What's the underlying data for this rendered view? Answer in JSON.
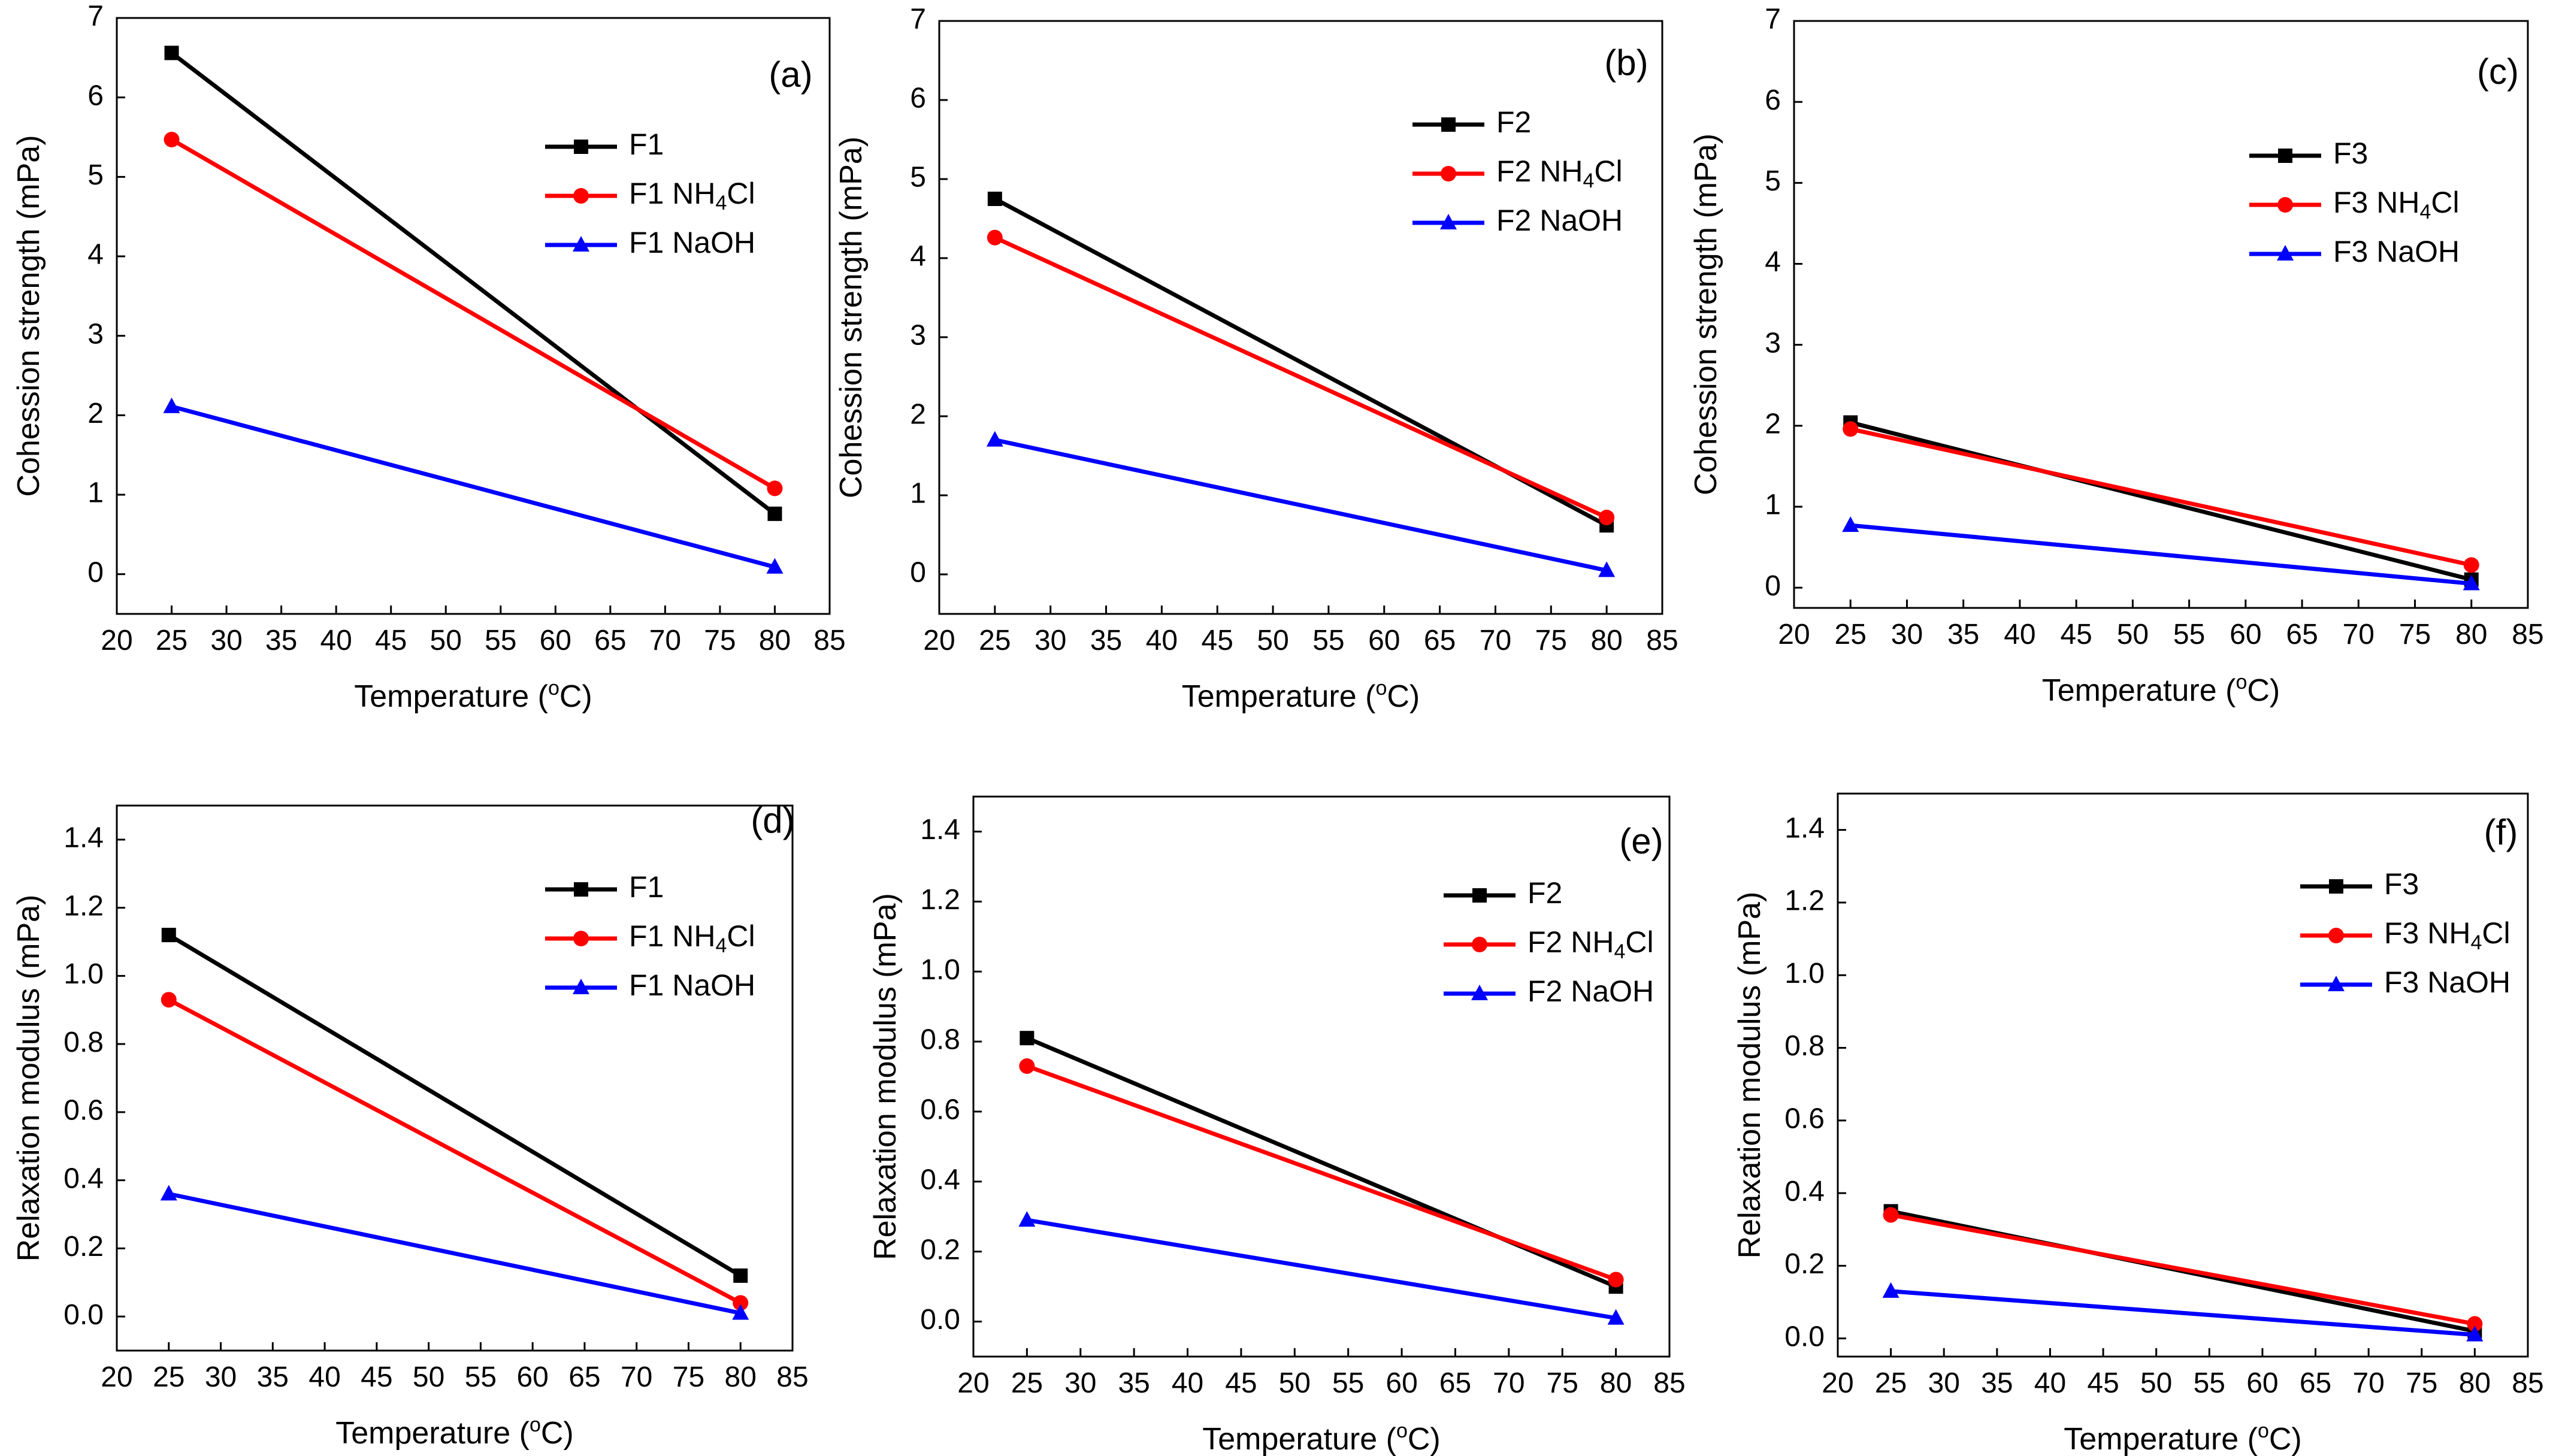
{
  "colors": {
    "black": "#000000",
    "red": "#ff0000",
    "blue": "#0000ff"
  },
  "chart_data": [
    {
      "type": "line",
      "panel_label": "(a)",
      "xlabel": "Temperature (",
      "xlabel_sup": "o",
      "xlabel_unit": "C)",
      "ylabel": "Cohession strength (mPa)",
      "xlim": [
        20,
        85
      ],
      "ylim": [
        -0.5,
        7
      ],
      "xticks": [
        "20",
        "25",
        "30",
        "35",
        "40",
        "45",
        "50",
        "55",
        "60",
        "65",
        "70",
        "75",
        "80",
        "85"
      ],
      "yticks": [
        "0",
        "1",
        "2",
        "3",
        "4",
        "5",
        "6",
        "7"
      ],
      "legend_position": "top-right",
      "series": [
        {
          "name": "F1",
          "sub": "",
          "suffix": "",
          "color": "#000000",
          "marker": "square",
          "x": [
            25,
            80
          ],
          "y": [
            6.56,
            0.76
          ]
        },
        {
          "name": "F1 NH",
          "sub": "4",
          "suffix": "Cl",
          "color": "#ff0000",
          "marker": "circle",
          "x": [
            25,
            80
          ],
          "y": [
            5.47,
            1.08
          ]
        },
        {
          "name": "F1 NaOH",
          "sub": "",
          "suffix": "",
          "color": "#0000ff",
          "marker": "triangle",
          "x": [
            25,
            80
          ],
          "y": [
            2.11,
            0.09
          ]
        }
      ]
    },
    {
      "type": "line",
      "panel_label": "(b)",
      "xlabel": "Temperature (",
      "xlabel_sup": "o",
      "xlabel_unit": "C)",
      "ylabel": "Cohession strength (mPa)",
      "xlim": [
        20,
        85
      ],
      "ylim": [
        -0.5,
        7
      ],
      "xticks": [
        "20",
        "25",
        "30",
        "35",
        "40",
        "45",
        "50",
        "55",
        "60",
        "65",
        "70",
        "75",
        "80",
        "85"
      ],
      "yticks": [
        "0",
        "1",
        "2",
        "3",
        "4",
        "5",
        "6",
        "7"
      ],
      "legend_position": "top-right",
      "series": [
        {
          "name": "F2",
          "sub": "",
          "suffix": "",
          "color": "#000000",
          "marker": "square",
          "x": [
            25,
            80
          ],
          "y": [
            4.75,
            0.62
          ]
        },
        {
          "name": "F2 NH",
          "sub": "4",
          "suffix": "Cl",
          "color": "#ff0000",
          "marker": "circle",
          "x": [
            25,
            80
          ],
          "y": [
            4.26,
            0.72
          ]
        },
        {
          "name": "F2 NaOH",
          "sub": "",
          "suffix": "",
          "color": "#0000ff",
          "marker": "triangle",
          "x": [
            25,
            80
          ],
          "y": [
            1.7,
            0.05
          ]
        }
      ]
    },
    {
      "type": "line",
      "panel_label": "(c)",
      "xlabel": "Temperature (",
      "xlabel_sup": "o",
      "xlabel_unit": "C)",
      "ylabel": "Cohession strength (mPa)",
      "xlim": [
        20,
        85
      ],
      "ylim": [
        -0.25,
        7
      ],
      "xticks": [
        "20",
        "25",
        "30",
        "35",
        "40",
        "45",
        "50",
        "55",
        "60",
        "65",
        "70",
        "75",
        "80",
        "85"
      ],
      "yticks": [
        "0",
        "1",
        "2",
        "3",
        "4",
        "5",
        "6",
        "7"
      ],
      "legend_position": "top-right",
      "series": [
        {
          "name": "F3",
          "sub": "",
          "suffix": "",
          "color": "#000000",
          "marker": "square",
          "x": [
            25,
            80
          ],
          "y": [
            2.04,
            0.1
          ]
        },
        {
          "name": "F3 NH",
          "sub": "4",
          "suffix": "Cl",
          "color": "#ff0000",
          "marker": "circle",
          "x": [
            25,
            80
          ],
          "y": [
            1.96,
            0.28
          ]
        },
        {
          "name": "F3 NaOH",
          "sub": "",
          "suffix": "",
          "color": "#0000ff",
          "marker": "triangle",
          "x": [
            25,
            80
          ],
          "y": [
            0.77,
            0.05
          ]
        }
      ]
    },
    {
      "type": "line",
      "panel_label": "(d)",
      "xlabel": "Temperature (",
      "xlabel_sup": "o",
      "xlabel_unit": "C)",
      "ylabel": "Relaxation modulus (mPa)",
      "xlim": [
        20,
        85
      ],
      "ylim": [
        -0.1,
        1.5
      ],
      "xticks": [
        "20",
        "25",
        "30",
        "35",
        "40",
        "45",
        "50",
        "55",
        "60",
        "65",
        "70",
        "75",
        "80",
        "85"
      ],
      "yticks": [
        "0.0",
        "0.2",
        "0.4",
        "0.6",
        "0.8",
        "1.0",
        "1.2",
        "1.4"
      ],
      "legend_position": "top-right",
      "series": [
        {
          "name": "F1",
          "sub": "",
          "suffix": "",
          "color": "#000000",
          "marker": "square",
          "x": [
            25,
            80
          ],
          "y": [
            1.12,
            0.12
          ]
        },
        {
          "name": "F1 NH",
          "sub": "4",
          "suffix": "Cl",
          "color": "#ff0000",
          "marker": "circle",
          "x": [
            25,
            80
          ],
          "y": [
            0.93,
            0.04
          ]
        },
        {
          "name": "F1 NaOH",
          "sub": "",
          "suffix": "",
          "color": "#0000ff",
          "marker": "triangle",
          "x": [
            25,
            80
          ],
          "y": [
            0.36,
            0.01
          ]
        }
      ]
    },
    {
      "type": "line",
      "panel_label": "(e)",
      "xlabel": "Temperature (",
      "xlabel_sup": "o",
      "xlabel_unit": "C)",
      "ylabel": "Relaxation modulus (mPa)",
      "xlim": [
        20,
        85
      ],
      "ylim": [
        -0.1,
        1.5
      ],
      "xticks": [
        "20",
        "25",
        "30",
        "35",
        "40",
        "45",
        "50",
        "55",
        "60",
        "65",
        "70",
        "75",
        "80",
        "85"
      ],
      "yticks": [
        "0.0",
        "0.2",
        "0.4",
        "0.6",
        "0.8",
        "1.0",
        "1.2",
        "1.4"
      ],
      "legend_position": "top-right",
      "series": [
        {
          "name": "F2",
          "sub": "",
          "suffix": "",
          "color": "#000000",
          "marker": "square",
          "x": [
            25,
            80
          ],
          "y": [
            0.81,
            0.1
          ]
        },
        {
          "name": "F2 NH",
          "sub": "4",
          "suffix": "Cl",
          "color": "#ff0000",
          "marker": "circle",
          "x": [
            25,
            80
          ],
          "y": [
            0.73,
            0.12
          ]
        },
        {
          "name": "F2 NaOH",
          "sub": "",
          "suffix": "",
          "color": "#0000ff",
          "marker": "triangle",
          "x": [
            25,
            80
          ],
          "y": [
            0.29,
            0.01
          ]
        }
      ]
    },
    {
      "type": "line",
      "panel_label": "(f)",
      "xlabel": "Temperature (",
      "xlabel_sup": "o",
      "xlabel_unit": "C)",
      "ylabel": "Relaxation modulus (mPa)",
      "xlim": [
        20,
        85
      ],
      "ylim": [
        -0.05,
        1.5
      ],
      "xticks": [
        "20",
        "25",
        "30",
        "35",
        "40",
        "45",
        "50",
        "55",
        "60",
        "65",
        "70",
        "75",
        "80",
        "85"
      ],
      "yticks": [
        "0.0",
        "0.2",
        "0.4",
        "0.6",
        "0.8",
        "1.0",
        "1.2",
        "1.4"
      ],
      "legend_position": "top-right",
      "series": [
        {
          "name": "F3",
          "sub": "",
          "suffix": "",
          "color": "#000000",
          "marker": "square",
          "x": [
            25,
            80
          ],
          "y": [
            0.35,
            0.02
          ]
        },
        {
          "name": "F3 NH",
          "sub": "4",
          "suffix": "Cl",
          "color": "#ff0000",
          "marker": "circle",
          "x": [
            25,
            80
          ],
          "y": [
            0.34,
            0.04
          ]
        },
        {
          "name": "F3 NaOH",
          "sub": "",
          "suffix": "",
          "color": "#0000ff",
          "marker": "triangle",
          "x": [
            25,
            80
          ],
          "y": [
            0.13,
            0.01
          ]
        }
      ]
    }
  ]
}
